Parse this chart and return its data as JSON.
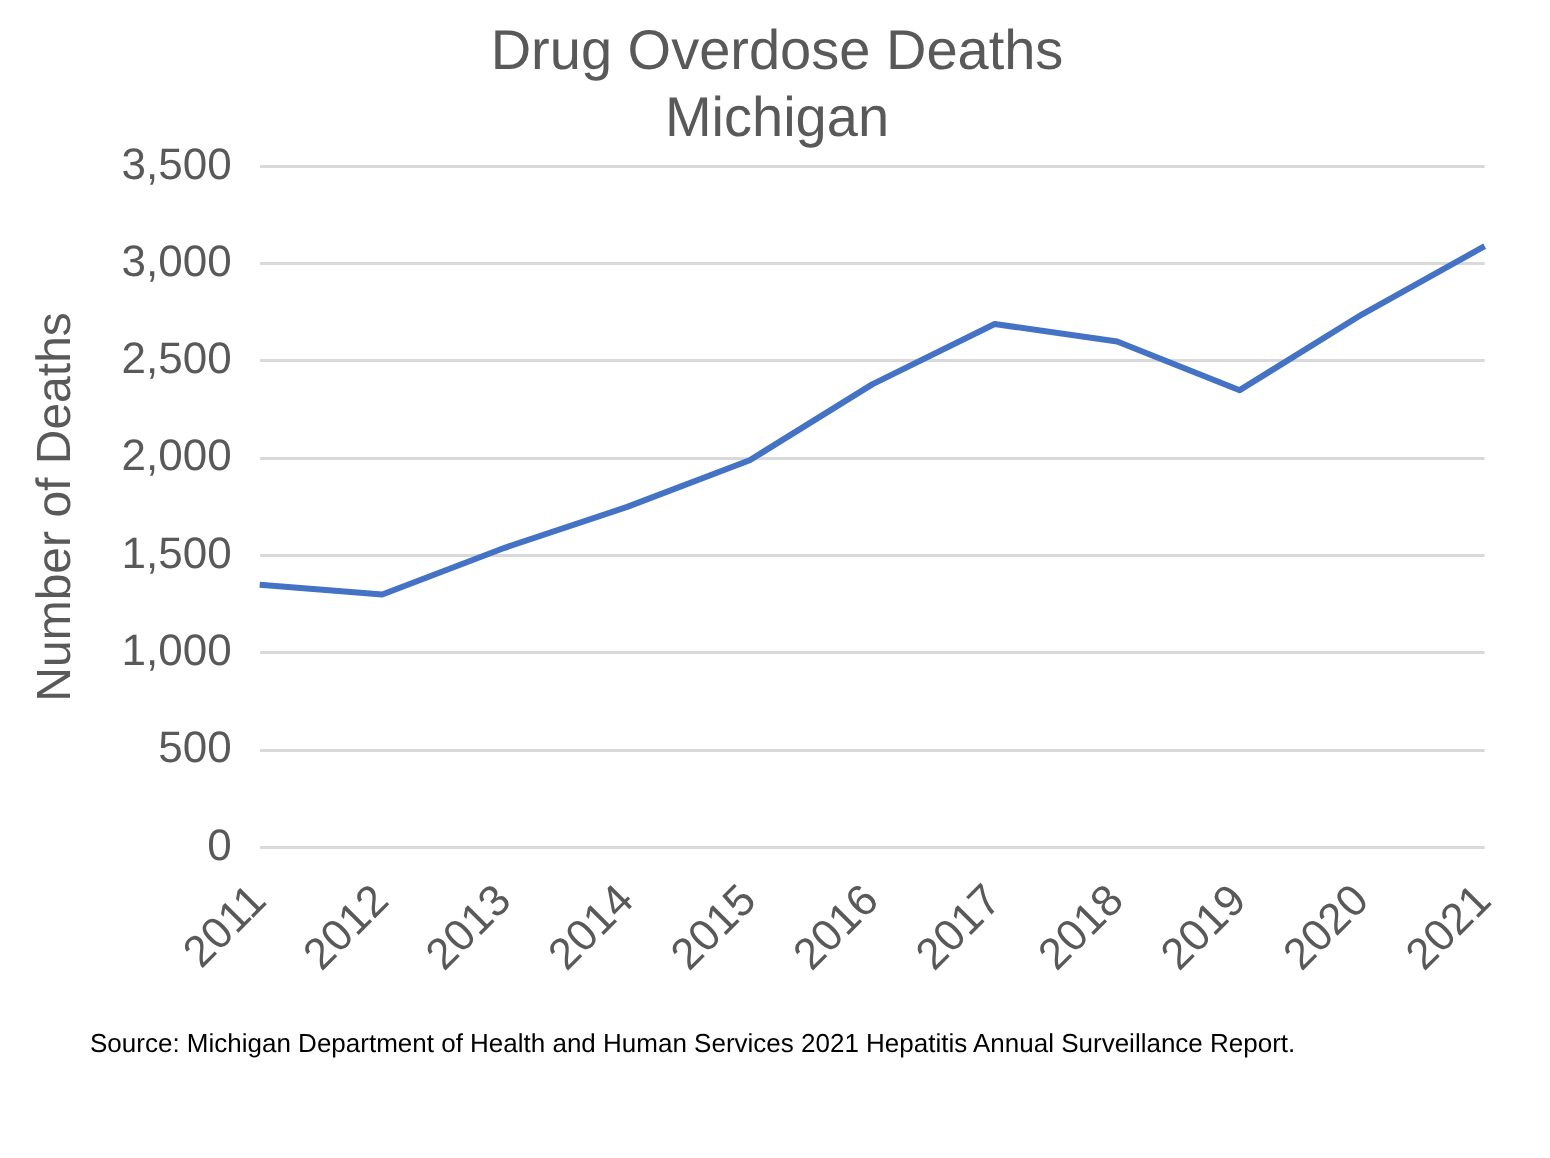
{
  "chart_data": {
    "type": "line",
    "title": "Drug Overdose Deaths\nMichigan",
    "ylabel": "Number of Deaths",
    "categories": [
      "2011",
      "2012",
      "2013",
      "2014",
      "2015",
      "2016",
      "2017",
      "2018",
      "2019",
      "2020",
      "2021"
    ],
    "series": [
      {
        "color": "#4472c4",
        "values": [
          1350,
          1300,
          1540,
          1750,
          1990,
          2380,
          2690,
          2600,
          2350,
          2740,
          3090
        ]
      }
    ],
    "ylim": [
      0,
      3500
    ],
    "yticks": [
      0,
      500,
      {
        "value": 1000,
        "label": "1,000"
      },
      {
        "value": 1500,
        "label": "1,500"
      },
      {
        "value": 2000,
        "label": "2,000"
      },
      {
        "value": 2500,
        "label": "2,500"
      },
      {
        "value": 3000,
        "label": "3,000"
      },
      {
        "value": 3500,
        "label": "3,500"
      }
    ],
    "grid": "y",
    "legend": false,
    "marker": "none",
    "line_style": "solid",
    "annotations": [
      "Source: Michigan Department of Health and Human Services 2021 Hepatitis Annual Surveillance Report."
    ]
  }
}
